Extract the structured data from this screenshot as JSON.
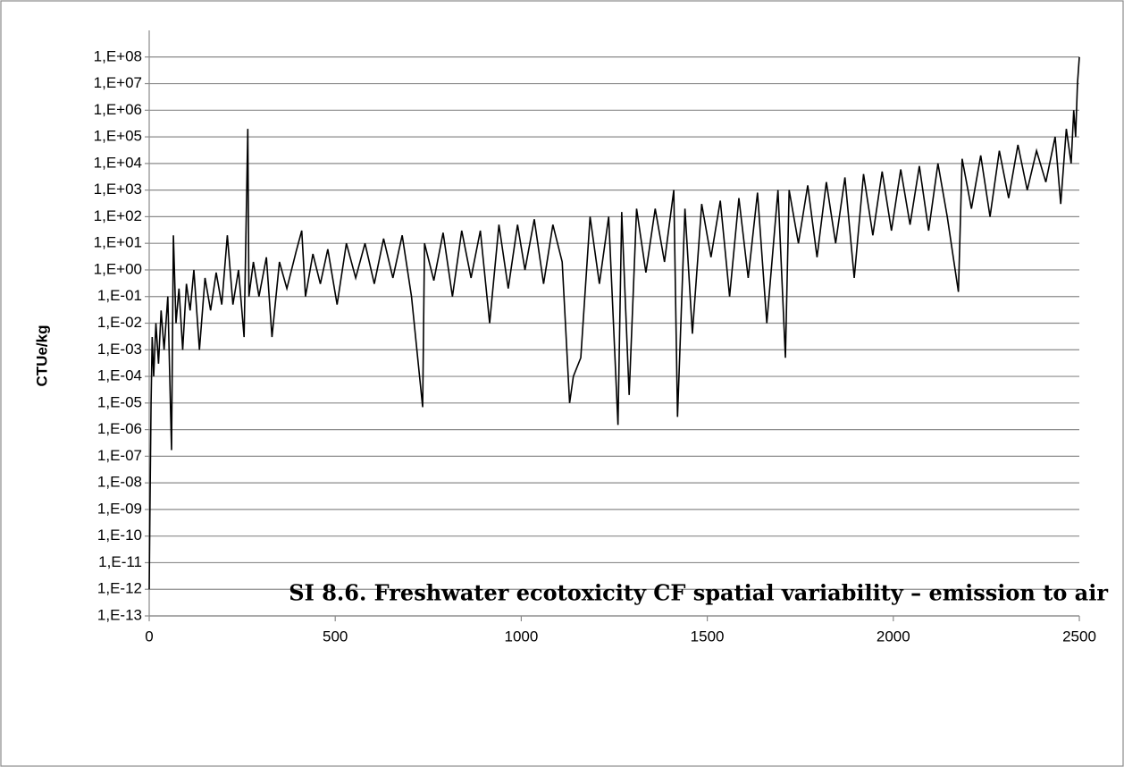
{
  "chart_data": {
    "type": "line",
    "title": "SI 8.6. Freshwater ecotoxicity CF spatial variability – emission to air",
    "y_label": "CTUe/kg",
    "log_y": true,
    "grid": true,
    "color": "#000000",
    "xlim": [
      0,
      2500
    ],
    "xticks": [
      0,
      500,
      1000,
      1500,
      2000,
      2500
    ],
    "ylim": [
      1e-13,
      1000000000.0
    ],
    "yticks": [
      {
        "value": 1e-13,
        "label": "1,E-13"
      },
      {
        "value": 1e-12,
        "label": "1,E-12"
      },
      {
        "value": 1e-11,
        "label": "1,E-11"
      },
      {
        "value": 1e-10,
        "label": "1,E-10"
      },
      {
        "value": 1e-09,
        "label": "1,E-09"
      },
      {
        "value": 1e-08,
        "label": "1,E-08"
      },
      {
        "value": 1e-07,
        "label": "1,E-07"
      },
      {
        "value": 1e-06,
        "label": "1,E-06"
      },
      {
        "value": 1e-05,
        "label": "1,E-05"
      },
      {
        "value": 0.0001,
        "label": "1,E-04"
      },
      {
        "value": 0.001,
        "label": "1,E-03"
      },
      {
        "value": 0.01,
        "label": "1,E-02"
      },
      {
        "value": 0.1,
        "label": "1,E-01"
      },
      {
        "value": 1,
        "label": "1,E+00"
      },
      {
        "value": 10,
        "label": "1,E+01"
      },
      {
        "value": 100,
        "label": "1,E+02"
      },
      {
        "value": 1000,
        "label": "1,E+03"
      },
      {
        "value": 10000,
        "label": "1,E+04"
      },
      {
        "value": 100000,
        "label": "1,E+05"
      },
      {
        "value": 1000000,
        "label": "1,E+06"
      },
      {
        "value": 10000000,
        "label": "1,E+07"
      },
      {
        "value": 100000000,
        "label": "1,E+08"
      }
    ],
    "x": [
      0,
      2,
      5,
      8,
      12,
      18,
      25,
      32,
      40,
      50,
      60,
      65,
      72,
      80,
      90,
      100,
      110,
      120,
      135,
      150,
      165,
      180,
      195,
      210,
      225,
      240,
      255,
      265,
      268,
      280,
      295,
      315,
      330,
      350,
      370,
      395,
      410,
      420,
      440,
      460,
      480,
      505,
      530,
      555,
      580,
      605,
      630,
      655,
      680,
      705,
      735,
      740,
      765,
      790,
      815,
      840,
      865,
      890,
      915,
      940,
      965,
      990,
      1010,
      1035,
      1060,
      1085,
      1110,
      1130,
      1140,
      1160,
      1185,
      1210,
      1235,
      1260,
      1270,
      1290,
      1310,
      1335,
      1360,
      1385,
      1410,
      1420,
      1440,
      1460,
      1485,
      1510,
      1535,
      1560,
      1585,
      1610,
      1635,
      1660,
      1690,
      1710,
      1720,
      1745,
      1770,
      1795,
      1820,
      1845,
      1870,
      1895,
      1920,
      1945,
      1970,
      1995,
      2020,
      2045,
      2070,
      2095,
      2120,
      2145,
      2175,
      2185,
      2210,
      2235,
      2260,
      2285,
      2310,
      2335,
      2360,
      2385,
      2410,
      2435,
      2450,
      2465,
      2478,
      2485,
      2490,
      2495,
      2500
    ],
    "values": [
      1e-12,
      1e-09,
      1e-05,
      0.003,
      0.0001,
      0.01,
      0.0003,
      0.03,
      0.001,
      0.1,
      1.7e-07,
      20.0,
      0.01,
      0.2,
      0.001,
      0.3,
      0.03,
      1,
      0.001,
      0.5,
      0.03,
      0.8,
      0.05,
      20.0,
      0.05,
      1,
      0.003,
      200000.0,
      0.1,
      2,
      0.1,
      3,
      0.003,
      2,
      0.2,
      5,
      30.0,
      0.1,
      4,
      0.3,
      6,
      0.05,
      10.0,
      0.5,
      10.0,
      0.3,
      15.0,
      0.5,
      20.0,
      0.1,
      7e-06,
      10.0,
      0.4,
      25.0,
      0.1,
      30.0,
      0.5,
      30.0,
      0.01,
      50.0,
      0.2,
      50.0,
      1,
      80.0,
      0.3,
      50.0,
      2,
      1e-05,
      0.0001,
      0.0005,
      100.0,
      0.3,
      100.0,
      1.5e-06,
      150.0,
      2e-05,
      200.0,
      0.8,
      200.0,
      2,
      1000.0,
      3e-06,
      200.0,
      0.004,
      300.0,
      3,
      400.0,
      0.1,
      500.0,
      0.5,
      800.0,
      0.01,
      1000.0,
      0.0005,
      1000.0,
      10.0,
      1500.0,
      3,
      2000.0,
      10.0,
      3000.0,
      0.5,
      4000.0,
      20.0,
      5000.0,
      30.0,
      6000.0,
      50.0,
      8000.0,
      30.0,
      10000.0,
      100.0,
      0.15,
      15000.0,
      200.0,
      20000.0,
      100.0,
      30000.0,
      500.0,
      50000.0,
      1000.0,
      30000.0,
      2000.0,
      100000.0,
      300.0,
      200000.0,
      10000.0,
      1000000.0,
      100000.0,
      10000000.0,
      100000000.0
    ]
  }
}
